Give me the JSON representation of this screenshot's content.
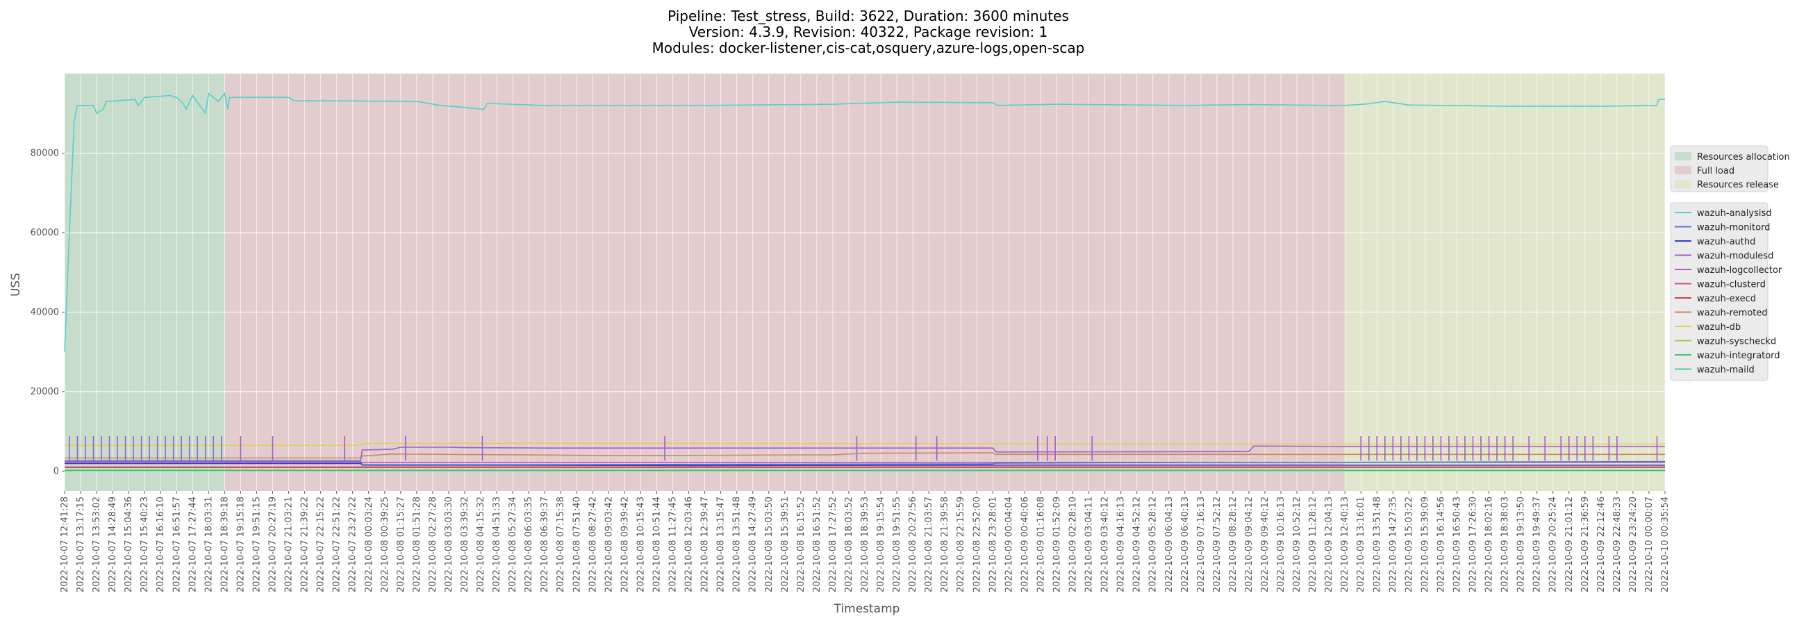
{
  "chart_data": {
    "type": "line",
    "title": [
      "Pipeline: Test_stress, Build: 3622, Duration: 3600 minutes",
      "Version: 4.3.9, Revision: 40322, Package revision: 1",
      "Modules: docker-listener,cis-cat,osquery,azure-logs,open-scap"
    ],
    "xlabel": "Timestamp",
    "ylabel": "USS",
    "ylim": [
      -5000,
      100000
    ],
    "yticks": [
      0,
      20000,
      40000,
      60000,
      80000
    ],
    "grid": true,
    "legend_placement": "right",
    "phases": [
      {
        "name": "Resources allocation",
        "start": 0,
        "end": 10,
        "color": "#c8dccc"
      },
      {
        "name": "Full load",
        "start": 10,
        "end": 80,
        "color": "#e3cccd"
      },
      {
        "name": "Resources release",
        "start": 80,
        "end": 100,
        "color": "#e2e6cc"
      }
    ],
    "x_ticklabels": [
      "2022-10-07 12:41:28",
      "2022-10-07 13:17:15",
      "2022-10-07 13:53:02",
      "2022-10-07 14:28:49",
      "2022-10-07 15:04:36",
      "2022-10-07 15:40:23",
      "2022-10-07 16:16:10",
      "2022-10-07 16:51:57",
      "2022-10-07 17:27:44",
      "2022-10-07 18:03:31",
      "2022-10-07 18:39:18",
      "2022-10-07 19:15:18",
      "2022-10-07 19:51:15",
      "2022-10-07 20:27:19",
      "2022-10-07 21:03:21",
      "2022-10-07 21:39:22",
      "2022-10-07 22:15:22",
      "2022-10-07 22:51:22",
      "2022-10-07 23:27:22",
      "2022-10-08 00:03:24",
      "2022-10-08 00:39:25",
      "2022-10-08 01:15:27",
      "2022-10-08 01:51:28",
      "2022-10-08 02:27:28",
      "2022-10-08 03:03:30",
      "2022-10-08 03:39:32",
      "2022-10-08 04:15:32",
      "2022-10-08 04:51:33",
      "2022-10-08 05:27:34",
      "2022-10-08 06:03:35",
      "2022-10-08 06:39:37",
      "2022-10-08 07:15:38",
      "2022-10-08 07:51:40",
      "2022-10-08 08:27:42",
      "2022-10-08 09:03:42",
      "2022-10-08 09:39:42",
      "2022-10-08 10:15:43",
      "2022-10-08 10:51:44",
      "2022-10-08 11:27:45",
      "2022-10-08 12:03:46",
      "2022-10-08 12:39:47",
      "2022-10-08 13:15:47",
      "2022-10-08 13:51:48",
      "2022-10-08 14:27:49",
      "2022-10-08 15:03:50",
      "2022-10-08 15:39:51",
      "2022-10-08 16:15:52",
      "2022-10-08 16:51:52",
      "2022-10-08 17:27:52",
      "2022-10-08 18:03:52",
      "2022-10-08 18:39:53",
      "2022-10-08 19:15:54",
      "2022-10-08 19:51:55",
      "2022-10-08 20:27:56",
      "2022-10-08 21:03:57",
      "2022-10-08 21:39:58",
      "2022-10-08 22:15:59",
      "2022-10-08 22:52:00",
      "2022-10-08 23:28:01",
      "2022-10-09 00:04:04",
      "2022-10-09 00:40:06",
      "2022-10-09 01:16:08",
      "2022-10-09 01:52:09",
      "2022-10-09 02:28:10",
      "2022-10-09 03:04:11",
      "2022-10-09 03:40:12",
      "2022-10-09 04:16:13",
      "2022-10-09 04:52:12",
      "2022-10-09 05:28:12",
      "2022-10-09 06:04:13",
      "2022-10-09 06:40:13",
      "2022-10-09 07:16:13",
      "2022-10-09 07:52:12",
      "2022-10-09 08:28:12",
      "2022-10-09 09:04:12",
      "2022-10-09 09:40:12",
      "2022-10-09 10:16:13",
      "2022-10-09 10:52:12",
      "2022-10-09 11:28:12",
      "2022-10-09 12:04:13",
      "2022-10-09 12:40:13",
      "2022-10-09 13:16:01",
      "2022-10-09 13:51:48",
      "2022-10-09 14:27:35",
      "2022-10-09 15:03:22",
      "2022-10-09 15:39:09",
      "2022-10-09 16:14:56",
      "2022-10-09 16:50:43",
      "2022-10-09 17:26:30",
      "2022-10-09 18:02:16",
      "2022-10-09 18:38:03",
      "2022-10-09 19:13:50",
      "2022-10-09 19:49:37",
      "2022-10-09 20:25:24",
      "2022-10-09 21:01:12",
      "2022-10-09 21:36:59",
      "2022-10-09 22:12:46",
      "2022-10-09 22:48:33",
      "2022-10-09 23:24:20",
      "2022-10-10 00:00:07",
      "2022-10-10 00:35:54"
    ],
    "series": [
      {
        "name": "wazuh-analysisd",
        "color": "#4fd1d1",
        "points": [
          [
            0,
            30000
          ],
          [
            0.3,
            60000
          ],
          [
            0.6,
            88000
          ],
          [
            0.8,
            92000
          ],
          [
            1.8,
            92000
          ],
          [
            2,
            90000
          ],
          [
            2.4,
            91000
          ],
          [
            2.6,
            93000
          ],
          [
            4.4,
            93500
          ],
          [
            4.6,
            92000
          ],
          [
            5,
            94000
          ],
          [
            6.6,
            94500
          ],
          [
            7,
            94000
          ],
          [
            7.4,
            92500
          ],
          [
            7.6,
            91000
          ],
          [
            8,
            94500
          ],
          [
            8.8,
            90000
          ],
          [
            9,
            95000
          ],
          [
            9.6,
            93000
          ],
          [
            10,
            95000
          ],
          [
            10.2,
            91000
          ],
          [
            10.3,
            94000
          ],
          [
            14,
            94000
          ],
          [
            14.3,
            93200
          ],
          [
            22,
            93000
          ],
          [
            23.5,
            92000
          ],
          [
            25,
            91500
          ],
          [
            26.2,
            91000
          ],
          [
            26.4,
            92500
          ],
          [
            30,
            92000
          ],
          [
            40,
            92000
          ],
          [
            48,
            92300
          ],
          [
            52,
            92800
          ],
          [
            58,
            92700
          ],
          [
            58.3,
            92000
          ],
          [
            62,
            92300
          ],
          [
            70,
            92000
          ],
          [
            74,
            92200
          ],
          [
            79,
            92000
          ],
          [
            80,
            92000
          ],
          [
            81.5,
            92400
          ],
          [
            82.5,
            93000
          ],
          [
            84,
            92100
          ],
          [
            90,
            91800
          ],
          [
            96,
            91800
          ],
          [
            99.5,
            92000
          ],
          [
            99.6,
            93500
          ],
          [
            100,
            93500
          ]
        ]
      },
      {
        "name": "wazuh-monitord",
        "color": "#4f78c9",
        "points": [
          [
            0,
            2500
          ],
          [
            18.5,
            2500
          ],
          [
            18.6,
            1600
          ],
          [
            30,
            1600
          ],
          [
            40,
            1700
          ],
          [
            58,
            1800
          ],
          [
            58.2,
            2000
          ],
          [
            70,
            2200
          ],
          [
            80,
            2200
          ],
          [
            100,
            2400
          ]
        ]
      },
      {
        "name": "wazuh-authd",
        "color": "#3b38c8",
        "points": [
          [
            0,
            1900
          ],
          [
            18.5,
            1900
          ],
          [
            18.6,
            1500
          ],
          [
            26,
            1500
          ],
          [
            40,
            1400
          ],
          [
            60,
            1500
          ],
          [
            80,
            1500
          ],
          [
            100,
            1500
          ]
        ]
      },
      {
        "name": "wazuh-modulesd",
        "color": "#a15bd6",
        "points": [
          [
            0,
            2600
          ],
          [
            18.5,
            2600
          ],
          [
            18.6,
            5300
          ],
          [
            20.5,
            5500
          ],
          [
            21,
            6000
          ],
          [
            24,
            6000
          ],
          [
            25,
            5900
          ],
          [
            30,
            5800
          ],
          [
            40,
            5800
          ],
          [
            58,
            5800
          ],
          [
            58.2,
            4800
          ],
          [
            74,
            4900
          ],
          [
            74.3,
            6300
          ],
          [
            80,
            6200
          ],
          [
            100,
            6200
          ]
        ]
      },
      {
        "name": "wazuh-logcollector",
        "color": "#c651c9",
        "points": [
          [
            0,
            2200
          ],
          [
            100,
            2200
          ]
        ]
      },
      {
        "name": "wazuh-clusterd",
        "color": "#d84a84",
        "points": [
          [
            0,
            1000
          ],
          [
            100,
            1000
          ]
        ]
      },
      {
        "name": "wazuh-execd",
        "color": "#d43f3f",
        "points": [
          [
            0,
            900
          ],
          [
            100,
            900
          ]
        ]
      },
      {
        "name": "wazuh-remoted",
        "color": "#c98a5a",
        "points": [
          [
            0,
            3300
          ],
          [
            18.5,
            3300
          ],
          [
            18.6,
            3800
          ],
          [
            20.5,
            4300
          ],
          [
            28,
            4100
          ],
          [
            35,
            3900
          ],
          [
            48,
            4100
          ],
          [
            50,
            4500
          ],
          [
            58,
            4600
          ],
          [
            58.2,
            4200
          ],
          [
            80,
            4200
          ],
          [
            100,
            4200
          ]
        ]
      },
      {
        "name": "wazuh-db",
        "color": "#e0cf5b",
        "points": [
          [
            0,
            6500
          ],
          [
            18.5,
            6500
          ],
          [
            18.6,
            6900
          ],
          [
            20,
            7000
          ],
          [
            30,
            7000
          ],
          [
            58,
            6900
          ],
          [
            58.2,
            6900
          ],
          [
            80,
            6800
          ],
          [
            100,
            6800
          ]
        ]
      },
      {
        "name": "wazuh-syscheckd",
        "color": "#9ccf4b",
        "points": [
          [
            0,
            1100
          ],
          [
            100,
            1100
          ]
        ]
      },
      {
        "name": "wazuh-integratord",
        "color": "#3fc66a",
        "points": [
          [
            0,
            200
          ],
          [
            100,
            200
          ]
        ]
      },
      {
        "name": "wazuh-maild",
        "color": "#45c9a0",
        "points": [
          [
            0,
            100
          ],
          [
            100,
            100
          ]
        ]
      }
    ],
    "spikes": {
      "color": "#a15bd6",
      "base": 2600,
      "top": 8800,
      "x": [
        0.3,
        0.8,
        1.3,
        1.8,
        2.3,
        2.8,
        3.3,
        3.8,
        4.3,
        4.8,
        5.3,
        5.8,
        6.3,
        6.8,
        7.3,
        7.8,
        8.3,
        8.8,
        9.3,
        9.8,
        11,
        13,
        17.5,
        21.3,
        26.1,
        37.5,
        49.5,
        53.2,
        54.5,
        60.8,
        61.4,
        61.9,
        64.2,
        81,
        81.5,
        82,
        82.5,
        83,
        83.5,
        84,
        84.5,
        85,
        85.5,
        86,
        86.5,
        87,
        87.5,
        88,
        88.5,
        89,
        89.5,
        90,
        90.5,
        91.5,
        92.5,
        93.5,
        94,
        94.5,
        95,
        95.5,
        96.5,
        97,
        99.5
      ]
    }
  }
}
